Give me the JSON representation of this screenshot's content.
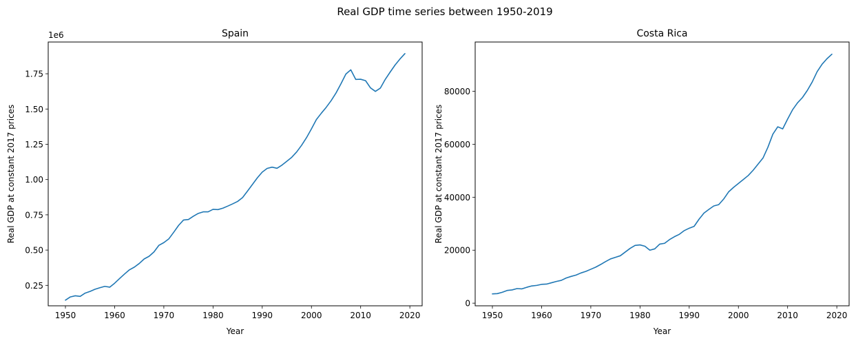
{
  "figure": {
    "suptitle": "Real GDP time series between 1950-2019"
  },
  "colors": {
    "line": "#1f77b4",
    "axes": "#000000",
    "background": "#ffffff"
  },
  "chart_data": [
    {
      "type": "line",
      "title": "Spain",
      "xlabel": "Year",
      "ylabel": "Real GDP at constant 2017 prices",
      "offset_label": "1e6",
      "xlim": [
        1946.5,
        2022.5
      ],
      "ylim": [
        0.105,
        1.975
      ],
      "y_unit_multiplier": 1000000,
      "grid": false,
      "legend": "none",
      "x_ticks": [
        1950,
        1960,
        1970,
        1980,
        1990,
        2000,
        2010,
        2020
      ],
      "x_tick_labels": [
        "1950",
        "1960",
        "1970",
        "1980",
        "1990",
        "2000",
        "2010",
        "2020"
      ],
      "y_ticks": [
        0.25,
        0.5,
        0.75,
        1.0,
        1.25,
        1.5,
        1.75
      ],
      "y_tick_labels": [
        "0.25",
        "0.50",
        "0.75",
        "1.00",
        "1.25",
        "1.50",
        "1.75"
      ],
      "series": [
        {
          "x": [
            1950,
            1951,
            1952,
            1953,
            1954,
            1955,
            1956,
            1957,
            1958,
            1959,
            1960,
            1961,
            1962,
            1963,
            1964,
            1965,
            1966,
            1967,
            1968,
            1969,
            1970,
            1971,
            1972,
            1973,
            1974,
            1975,
            1976,
            1977,
            1978,
            1979,
            1980,
            1981,
            1982,
            1983,
            1984,
            1985,
            1986,
            1987,
            1988,
            1989,
            1990,
            1991,
            1992,
            1993,
            1994,
            1995,
            1996,
            1997,
            1998,
            1999,
            2000,
            2001,
            2002,
            2003,
            2004,
            2005,
            2006,
            2007,
            2008,
            2009,
            2010,
            2011,
            2012,
            2013,
            2014,
            2015,
            2016,
            2017,
            2018,
            2019
          ],
          "values": [
            0.145,
            0.168,
            0.176,
            0.172,
            0.195,
            0.207,
            0.222,
            0.233,
            0.243,
            0.237,
            0.265,
            0.298,
            0.33,
            0.36,
            0.379,
            0.405,
            0.437,
            0.456,
            0.487,
            0.534,
            0.553,
            0.579,
            0.626,
            0.675,
            0.713,
            0.717,
            0.74,
            0.76,
            0.771,
            0.771,
            0.789,
            0.787,
            0.797,
            0.812,
            0.828,
            0.845,
            0.872,
            0.918,
            0.965,
            1.012,
            1.053,
            1.079,
            1.088,
            1.08,
            1.102,
            1.13,
            1.158,
            1.196,
            1.243,
            1.297,
            1.359,
            1.425,
            1.47,
            1.512,
            1.559,
            1.614,
            1.679,
            1.748,
            1.778,
            1.71,
            1.711,
            1.701,
            1.65,
            1.625,
            1.648,
            1.71,
            1.762,
            1.812,
            1.855,
            1.893
          ]
        }
      ]
    },
    {
      "type": "line",
      "title": "Costa Rica",
      "xlabel": "Year",
      "ylabel": "Real GDP at constant 2017 prices",
      "xlim": [
        1946.5,
        2022.5
      ],
      "ylim": [
        -1000,
        98600
      ],
      "grid": false,
      "legend": "none",
      "x_ticks": [
        1950,
        1960,
        1970,
        1980,
        1990,
        2000,
        2010,
        2020
      ],
      "x_tick_labels": [
        "1950",
        "1960",
        "1970",
        "1980",
        "1990",
        "2000",
        "2010",
        "2020"
      ],
      "y_ticks": [
        0,
        20000,
        40000,
        60000,
        80000
      ],
      "y_tick_labels": [
        "0",
        "20000",
        "40000",
        "60000",
        "80000"
      ],
      "series": [
        {
          "x": [
            1950,
            1951,
            1952,
            1953,
            1954,
            1955,
            1956,
            1957,
            1958,
            1959,
            1960,
            1961,
            1962,
            1963,
            1964,
            1965,
            1966,
            1967,
            1968,
            1969,
            1970,
            1971,
            1972,
            1973,
            1974,
            1975,
            1976,
            1977,
            1978,
            1979,
            1980,
            1981,
            1982,
            1983,
            1984,
            1985,
            1986,
            1987,
            1988,
            1989,
            1990,
            1991,
            1992,
            1993,
            1994,
            1995,
            1996,
            1997,
            1998,
            1999,
            2000,
            2001,
            2002,
            2003,
            2004,
            2005,
            2006,
            2007,
            2008,
            2009,
            2010,
            2011,
            2012,
            2013,
            2014,
            2015,
            2016,
            2017,
            2018,
            2019
          ],
          "values": [
            3500,
            3600,
            4100,
            4800,
            5000,
            5500,
            5400,
            6000,
            6500,
            6700,
            7100,
            7200,
            7700,
            8200,
            8600,
            9500,
            10100,
            10600,
            11400,
            12000,
            12800,
            13600,
            14600,
            15700,
            16700,
            17300,
            17900,
            19300,
            20700,
            21800,
            22000,
            21500,
            20000,
            20500,
            22300,
            22600,
            24000,
            25100,
            26000,
            27400,
            28300,
            29000,
            31700,
            34000,
            35400,
            36700,
            37200,
            39300,
            42000,
            43700,
            45200,
            46700,
            48200,
            50200,
            52500,
            54800,
            58900,
            63800,
            66600,
            65800,
            69500,
            73000,
            75600,
            77600,
            80300,
            83500,
            87400,
            90200,
            92300,
            94000
          ]
        }
      ]
    }
  ]
}
